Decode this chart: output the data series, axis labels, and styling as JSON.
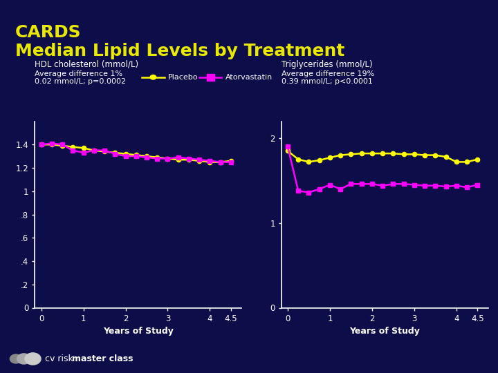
{
  "title_line1": "CARDS",
  "title_line2": "Median Lipid Levels by Treatment",
  "bg_color": "#0d0d4a",
  "title_color": "#e8e800",
  "axis_color": "#ffffff",
  "text_color": "#ffffff",
  "hdl_label": "HDL cholesterol (mmol/L)",
  "hdl_avg_diff": "Average difference 1%",
  "hdl_avg_diff2": "0.02 mmol/L; p=0.0002",
  "hdl_placebo_x": [
    0,
    0.25,
    0.5,
    0.75,
    1.0,
    1.25,
    1.5,
    1.75,
    2.0,
    2.25,
    2.5,
    2.75,
    3.0,
    3.25,
    3.5,
    3.75,
    4.0,
    4.25,
    4.5
  ],
  "hdl_placebo_y": [
    1.4,
    1.4,
    1.39,
    1.38,
    1.37,
    1.35,
    1.34,
    1.33,
    1.32,
    1.31,
    1.3,
    1.29,
    1.28,
    1.27,
    1.27,
    1.26,
    1.25,
    1.25,
    1.26
  ],
  "hdl_atorva_x": [
    0,
    0.25,
    0.5,
    0.75,
    1.0,
    1.25,
    1.5,
    1.75,
    2.0,
    2.25,
    2.5,
    2.75,
    3.0,
    3.25,
    3.5,
    3.75,
    4.0,
    4.25,
    4.5
  ],
  "hdl_atorva_y": [
    1.4,
    1.41,
    1.4,
    1.35,
    1.33,
    1.35,
    1.35,
    1.32,
    1.3,
    1.3,
    1.29,
    1.28,
    1.28,
    1.29,
    1.28,
    1.27,
    1.26,
    1.25,
    1.25
  ],
  "hdl_ylim": [
    0,
    1.6
  ],
  "hdl_yticks": [
    0,
    0.2,
    0.4,
    0.6,
    0.8,
    1.0,
    1.2,
    1.4
  ],
  "hdl_ytick_labels": [
    "0",
    ".2",
    ".4",
    ".6",
    ".8",
    "1",
    "1.2",
    "1.4"
  ],
  "tg_label": "Triglycerides (mmol/L)",
  "tg_avg_diff": "Average difference 19%",
  "tg_avg_diff2": "0.39 mmol/L; p<0.0001",
  "tg_placebo_x": [
    0,
    0.25,
    0.5,
    0.75,
    1.0,
    1.25,
    1.5,
    1.75,
    2.0,
    2.25,
    2.5,
    2.75,
    3.0,
    3.25,
    3.5,
    3.75,
    4.0,
    4.25,
    4.5
  ],
  "tg_placebo_y": [
    1.85,
    1.75,
    1.72,
    1.74,
    1.77,
    1.8,
    1.81,
    1.82,
    1.82,
    1.82,
    1.82,
    1.81,
    1.81,
    1.8,
    1.8,
    1.78,
    1.72,
    1.72,
    1.75
  ],
  "tg_atorva_x": [
    0,
    0.25,
    0.5,
    0.75,
    1.0,
    1.25,
    1.5,
    1.75,
    2.0,
    2.25,
    2.5,
    2.75,
    3.0,
    3.25,
    3.5,
    3.75,
    4.0,
    4.25,
    4.5
  ],
  "tg_atorva_y": [
    1.9,
    1.38,
    1.36,
    1.4,
    1.45,
    1.4,
    1.46,
    1.46,
    1.46,
    1.44,
    1.46,
    1.46,
    1.45,
    1.44,
    1.44,
    1.43,
    1.44,
    1.42,
    1.45
  ],
  "tg_ylim": [
    0,
    2.2
  ],
  "tg_yticks": [
    0,
    1,
    2
  ],
  "tg_ytick_labels": [
    "0",
    "1",
    "2"
  ],
  "x_ticks": [
    0,
    1,
    2,
    3,
    4,
    4.5
  ],
  "x_tick_labels": [
    "0",
    "1",
    "2",
    "3",
    "4",
    "4.5"
  ],
  "xlabel": "Years of Study",
  "placebo_color": "#ffff00",
  "atorva_color": "#ff00ff",
  "legend_placebo": "Placebo",
  "legend_atorva": "Atorvastatin",
  "footer_text": "cv risk",
  "footer_text2": "master class"
}
